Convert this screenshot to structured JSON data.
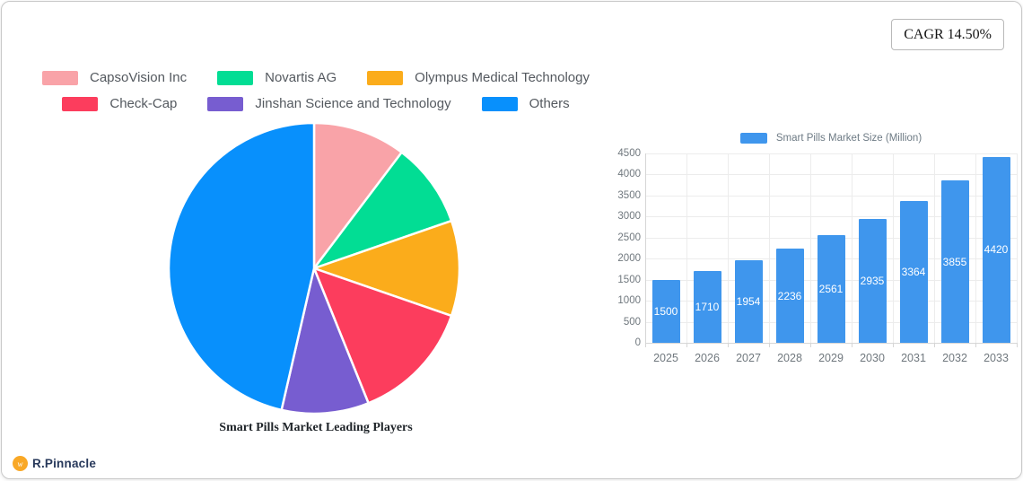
{
  "header": {
    "cagr_label": "CAGR 14.50%"
  },
  "footer": {
    "brand": "R.Pinnacle",
    "logo_color": "#f9a826",
    "logo_glyph": "w"
  },
  "chart_data": [
    {
      "type": "pie",
      "title": "Smart Pills Market Leading Players",
      "legend_position": "top",
      "legend_rows": [
        [
          0,
          1,
          2
        ],
        [
          3,
          4,
          5
        ]
      ],
      "start_angle_deg": 0,
      "slices": [
        {
          "label": "CapsoVision Inc",
          "percent": 10.3,
          "color": "#f9a3a8"
        },
        {
          "label": "Novartis AG",
          "percent": 9.4,
          "color": "#02dd94"
        },
        {
          "label": "Olympus Medical Technology",
          "percent": 10.6,
          "color": "#fbac1b"
        },
        {
          "label": "Check-Cap",
          "percent": 13.6,
          "color": "#fc3d5d"
        },
        {
          "label": "Jinshan Science and Technology",
          "percent": 9.7,
          "color": "#775dd0"
        },
        {
          "label": "Others",
          "percent": 46.4,
          "color": "#0890fc"
        }
      ]
    },
    {
      "type": "bar",
      "legend_label": "Smart Pills Market Size (Million)",
      "categories": [
        "2025",
        "2026",
        "2027",
        "2028",
        "2029",
        "2030",
        "2031",
        "2032",
        "2033"
      ],
      "values": [
        1500,
        1710,
        1954,
        2236,
        2561,
        2935,
        3364,
        3855,
        4420
      ],
      "bar_color": "#3f96ed",
      "value_label_color": "#ffffff",
      "ylim": [
        0,
        4500
      ],
      "ytick_step": 500,
      "grid": true,
      "legend_position": "top"
    }
  ]
}
